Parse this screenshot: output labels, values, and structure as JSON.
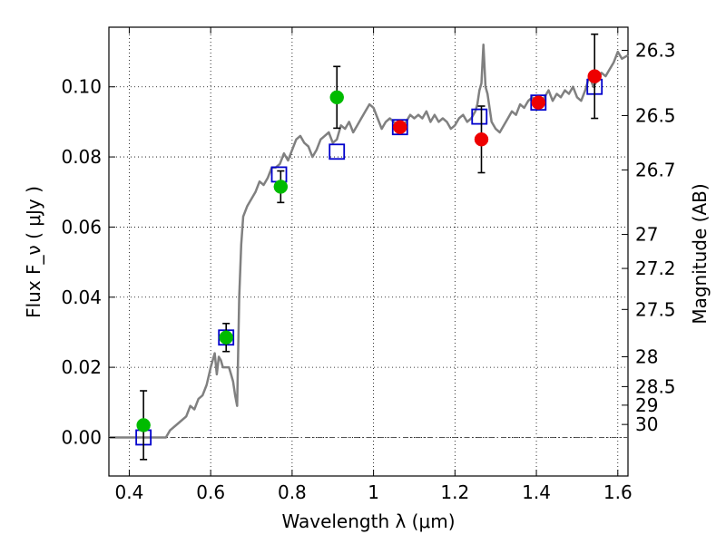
{
  "chart_data": {
    "type": "scatter",
    "title": "",
    "xlabel": "Wavelength  λ (μm)",
    "ylabel": "Flux  F_ν  ( μJy )",
    "ylabel_right": "Magnitude (AB)",
    "xlim": [
      0.35,
      1.625
    ],
    "ylim": [
      -0.011,
      0.117
    ],
    "grid": true,
    "x_ticks": [
      0.4,
      0.6,
      0.8,
      1.0,
      1.2,
      1.4,
      1.6
    ],
    "x_tick_labels": [
      "0.4",
      "0.6",
      "0.8",
      "1",
      "1.2",
      "1.4",
      "1.6"
    ],
    "y_ticks": [
      0.0,
      0.02,
      0.04,
      0.06,
      0.08,
      0.1
    ],
    "y_tick_labels": [
      "0.00",
      "0.02",
      "0.04",
      "0.06",
      "0.08",
      "0.10"
    ],
    "right_ticks": [
      {
        "label": "26.3",
        "flux": 0.1104
      },
      {
        "label": "26.5",
        "flux": 0.0918
      },
      {
        "label": "26.7",
        "flux": 0.0763
      },
      {
        "label": "27",
        "flux": 0.0579
      },
      {
        "label": "27.2",
        "flux": 0.0482
      },
      {
        "label": "27.5",
        "flux": 0.0365
      },
      {
        "label": "28",
        "flux": 0.023
      },
      {
        "label": "28.5",
        "flux": 0.0145
      },
      {
        "label": "29",
        "flux": 0.0092
      },
      {
        "label": "30",
        "flux": 0.0037
      }
    ],
    "series": [
      {
        "kind": "model-spectrum",
        "color": "#808080",
        "x": [
          0.35,
          0.49,
          0.5,
          0.52,
          0.54,
          0.55,
          0.56,
          0.57,
          0.58,
          0.59,
          0.6,
          0.61,
          0.615,
          0.62,
          0.625,
          0.63,
          0.64,
          0.645,
          0.65,
          0.655,
          0.66,
          0.665,
          0.67,
          0.675,
          0.68,
          0.69,
          0.7,
          0.71,
          0.72,
          0.73,
          0.74,
          0.75,
          0.76,
          0.77,
          0.78,
          0.79,
          0.8,
          0.81,
          0.82,
          0.83,
          0.84,
          0.85,
          0.86,
          0.87,
          0.88,
          0.89,
          0.9,
          0.91,
          0.92,
          0.93,
          0.94,
          0.95,
          0.96,
          0.97,
          0.98,
          0.99,
          1.0,
          1.01,
          1.02,
          1.03,
          1.04,
          1.05,
          1.06,
          1.07,
          1.08,
          1.09,
          1.1,
          1.11,
          1.12,
          1.13,
          1.14,
          1.15,
          1.16,
          1.17,
          1.18,
          1.19,
          1.2,
          1.21,
          1.22,
          1.23,
          1.24,
          1.25,
          1.255,
          1.26,
          1.265,
          1.27,
          1.275,
          1.28,
          1.29,
          1.3,
          1.31,
          1.32,
          1.33,
          1.34,
          1.35,
          1.36,
          1.37,
          1.38,
          1.39,
          1.4,
          1.41,
          1.42,
          1.43,
          1.44,
          1.45,
          1.46,
          1.47,
          1.48,
          1.49,
          1.5,
          1.51,
          1.52,
          1.53,
          1.54,
          1.55,
          1.56,
          1.57,
          1.58,
          1.59,
          1.6,
          1.61,
          1.625
        ],
        "y": [
          0.0,
          0.0,
          0.002,
          0.004,
          0.006,
          0.009,
          0.008,
          0.011,
          0.012,
          0.015,
          0.02,
          0.024,
          0.018,
          0.023,
          0.022,
          0.02,
          0.02,
          0.02,
          0.018,
          0.016,
          0.012,
          0.009,
          0.04,
          0.055,
          0.063,
          0.066,
          0.068,
          0.07,
          0.073,
          0.072,
          0.074,
          0.077,
          0.077,
          0.078,
          0.081,
          0.079,
          0.082,
          0.085,
          0.086,
          0.084,
          0.083,
          0.08,
          0.082,
          0.085,
          0.086,
          0.087,
          0.084,
          0.085,
          0.089,
          0.088,
          0.09,
          0.087,
          0.089,
          0.091,
          0.093,
          0.095,
          0.094,
          0.091,
          0.088,
          0.09,
          0.091,
          0.09,
          0.089,
          0.088,
          0.09,
          0.092,
          0.091,
          0.092,
          0.091,
          0.093,
          0.09,
          0.092,
          0.09,
          0.091,
          0.09,
          0.088,
          0.089,
          0.091,
          0.092,
          0.09,
          0.091,
          0.093,
          0.095,
          0.099,
          0.101,
          0.112,
          0.1,
          0.098,
          0.09,
          0.088,
          0.087,
          0.089,
          0.091,
          0.093,
          0.092,
          0.095,
          0.094,
          0.096,
          0.097,
          0.095,
          0.094,
          0.097,
          0.099,
          0.096,
          0.098,
          0.097,
          0.099,
          0.098,
          0.1,
          0.097,
          0.096,
          0.099,
          0.103,
          0.1,
          0.102,
          0.104,
          0.103,
          0.105,
          0.107,
          0.11,
          0.108,
          0.109
        ]
      },
      {
        "kind": "model-photometry",
        "marker": "open-square",
        "color": "#0000cc",
        "x": [
          0.435,
          0.638,
          0.768,
          0.91,
          1.065,
          1.26,
          1.405,
          1.543
        ],
        "y": [
          0.0,
          0.0285,
          0.075,
          0.0815,
          0.0885,
          0.0915,
          0.0955,
          0.1
        ]
      },
      {
        "kind": "observed-green",
        "marker": "filled-circle",
        "color": "#00bb00",
        "x": [
          0.435,
          0.638,
          0.772,
          0.91
        ],
        "y": [
          0.0035,
          0.0285,
          0.0715,
          0.097
        ],
        "err": [
          0.0098,
          0.004,
          0.0045,
          0.0088
        ]
      },
      {
        "kind": "observed-red",
        "marker": "filled-circle",
        "color": "#ee0000",
        "x": [
          1.065,
          1.265,
          1.405,
          1.543
        ],
        "y": [
          0.0885,
          0.085,
          0.0955,
          0.103
        ],
        "err": [
          0.0,
          0.0095,
          0.0,
          0.012
        ]
      }
    ]
  }
}
